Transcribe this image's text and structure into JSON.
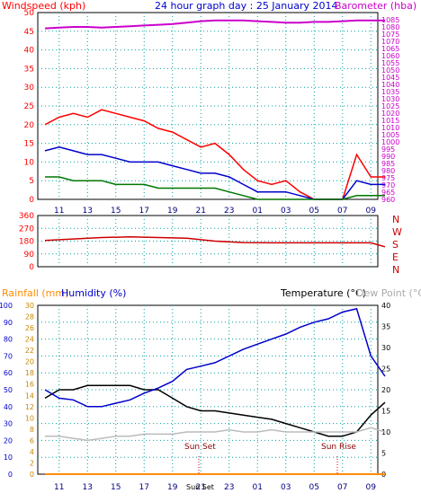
{
  "header": {
    "left_label": "Windspeed (kph)",
    "title": "24 hour graph day : 25 January 2014",
    "right_label": "Barometer (hba)"
  },
  "bottom_header": {
    "rainfall_label": "Rainfall (mm)",
    "humidity_label": "Humidity (%)",
    "temperature_label": "Temperature (°C)",
    "dewpoint_label": "Dew Point (°C)"
  },
  "colors": {
    "wind_gust": "#ff0000",
    "wind_avg": "#0000cc",
    "wind_min": "#007700",
    "barometer": "#cc00cc",
    "direction": "#cc0000",
    "rain": "#ff8c00",
    "humidity": "#0000cc",
    "temperature": "#000000",
    "dewpoint": "#bbbbbb",
    "axis_blue": "#0000cc",
    "axis_orange": "#cc8800",
    "grid": "#00a0a0"
  },
  "x_ticks": [
    "11",
    "13",
    "15",
    "17",
    "19",
    "21",
    "23",
    "01",
    "03",
    "05",
    "07",
    "09"
  ],
  "direction_letters": [
    "N",
    "W",
    "S",
    "E",
    "N"
  ],
  "sun_set_label": "Sun Set",
  "sun_rise_label": "Sun Rise",
  "sun_set_axis_label": "Sun Set",
  "chart_data": [
    {
      "type": "line",
      "panel": "wind_barometer",
      "title": "24 hour graph day : 25 January 2014",
      "ylabel": "Windspeed (kph)",
      "y2label": "Barometer (hba)",
      "ylim": [
        0,
        50
      ],
      "y2lim": [
        960,
        1090
      ],
      "y_ticks": [
        0,
        5,
        10,
        15,
        20,
        25,
        30,
        35,
        40,
        45,
        50
      ],
      "y2_ticks": [
        960,
        965,
        970,
        975,
        980,
        985,
        990,
        995,
        1000,
        1005,
        1010,
        1015,
        1020,
        1025,
        1030,
        1035,
        1040,
        1045,
        1050,
        1055,
        1060,
        1065,
        1070,
        1075,
        1080,
        1085
      ],
      "x": [
        10,
        11,
        12,
        13,
        14,
        15,
        16,
        17,
        18,
        19,
        20,
        21,
        22,
        23,
        24,
        25,
        26,
        27,
        28,
        29,
        30,
        31,
        32,
        33,
        34
      ],
      "series": [
        {
          "key": "gust",
          "values": [
            20,
            22,
            23,
            22,
            24,
            23,
            22,
            21,
            19,
            18,
            16,
            14,
            15,
            12,
            8,
            5,
            4,
            5,
            2,
            0,
            0,
            0,
            12,
            6,
            6
          ]
        },
        {
          "key": "avg",
          "values": [
            13,
            14,
            13,
            12,
            12,
            11,
            10,
            10,
            10,
            9,
            8,
            7,
            7,
            6,
            4,
            2,
            2,
            2,
            1,
            0,
            0,
            0,
            5,
            4,
            4
          ]
        },
        {
          "key": "min",
          "values": [
            6,
            6,
            5,
            5,
            5,
            4,
            4,
            4,
            3,
            3,
            3,
            3,
            3,
            2,
            1,
            0,
            0,
            0,
            0,
            0,
            0,
            0,
            1,
            1,
            1
          ]
        },
        {
          "key": "barometer",
          "values": [
            1079,
            1079.5,
            1080,
            1080,
            1079.5,
            1080,
            1080.5,
            1081,
            1081.5,
            1082,
            1083,
            1084,
            1084.5,
            1084.5,
            1084.5,
            1084,
            1083.5,
            1083,
            1083,
            1083.5,
            1083.5,
            1084,
            1084.5,
            1084.5,
            1084.5
          ]
        }
      ]
    },
    {
      "type": "scatter",
      "panel": "wind_direction",
      "ylim": [
        0,
        360
      ],
      "y_ticks": [
        0,
        90,
        180,
        270,
        360
      ],
      "x": [
        10,
        12,
        14,
        16,
        18,
        20,
        22,
        24,
        26,
        28,
        30,
        32,
        33,
        34
      ],
      "series": [
        {
          "key": "direction",
          "values": [
            185,
            195,
            205,
            210,
            205,
            200,
            180,
            170,
            168,
            168,
            168,
            168,
            168,
            140
          ]
        }
      ]
    },
    {
      "type": "line",
      "panel": "temperature_humidity",
      "ylim_humidity": [
        0,
        100
      ],
      "ylim_rain": [
        0,
        30
      ],
      "ylim_temperature": [
        0,
        40
      ],
      "humidity_ticks": [
        0,
        10,
        20,
        30,
        40,
        50,
        60,
        70,
        80,
        90,
        100
      ],
      "rain_ticks": [
        0,
        2,
        4,
        6,
        8,
        10,
        12,
        14,
        16,
        18,
        20,
        22,
        24,
        26,
        28,
        30
      ],
      "temperature_ticks": [
        0,
        5,
        10,
        15,
        20,
        25,
        30,
        35,
        40
      ],
      "x": [
        10,
        11,
        12,
        13,
        14,
        15,
        16,
        17,
        18,
        19,
        20,
        21,
        22,
        23,
        24,
        25,
        26,
        27,
        28,
        29,
        30,
        31,
        32,
        33,
        34
      ],
      "series": [
        {
          "key": "temperature",
          "values": [
            18,
            20,
            20,
            21,
            21,
            21,
            21,
            20,
            20,
            18,
            16,
            15,
            15,
            14.5,
            14,
            13.5,
            13,
            12,
            11,
            10,
            9,
            9,
            10,
            14,
            17
          ]
        },
        {
          "key": "humidity",
          "values": [
            50,
            45,
            44,
            40,
            40,
            42,
            44,
            48,
            51,
            55,
            62,
            64,
            66,
            70,
            74,
            77,
            80,
            83,
            87,
            90,
            92,
            96,
            98,
            70,
            58
          ]
        },
        {
          "key": "dewpoint",
          "values": [
            9,
            9,
            8.5,
            8,
            8.5,
            9,
            9,
            9.5,
            9.5,
            9.5,
            10,
            10,
            10,
            10.5,
            10,
            10,
            10.5,
            10,
            10,
            10,
            10,
            10,
            10,
            11,
            10
          ]
        },
        {
          "key": "rainfall",
          "values": [
            0,
            0,
            0,
            0,
            0,
            0,
            0,
            0,
            0,
            0,
            0,
            0,
            0,
            0,
            0,
            0,
            0,
            0,
            0,
            0,
            0,
            0,
            0,
            0,
            0
          ]
        }
      ]
    }
  ]
}
